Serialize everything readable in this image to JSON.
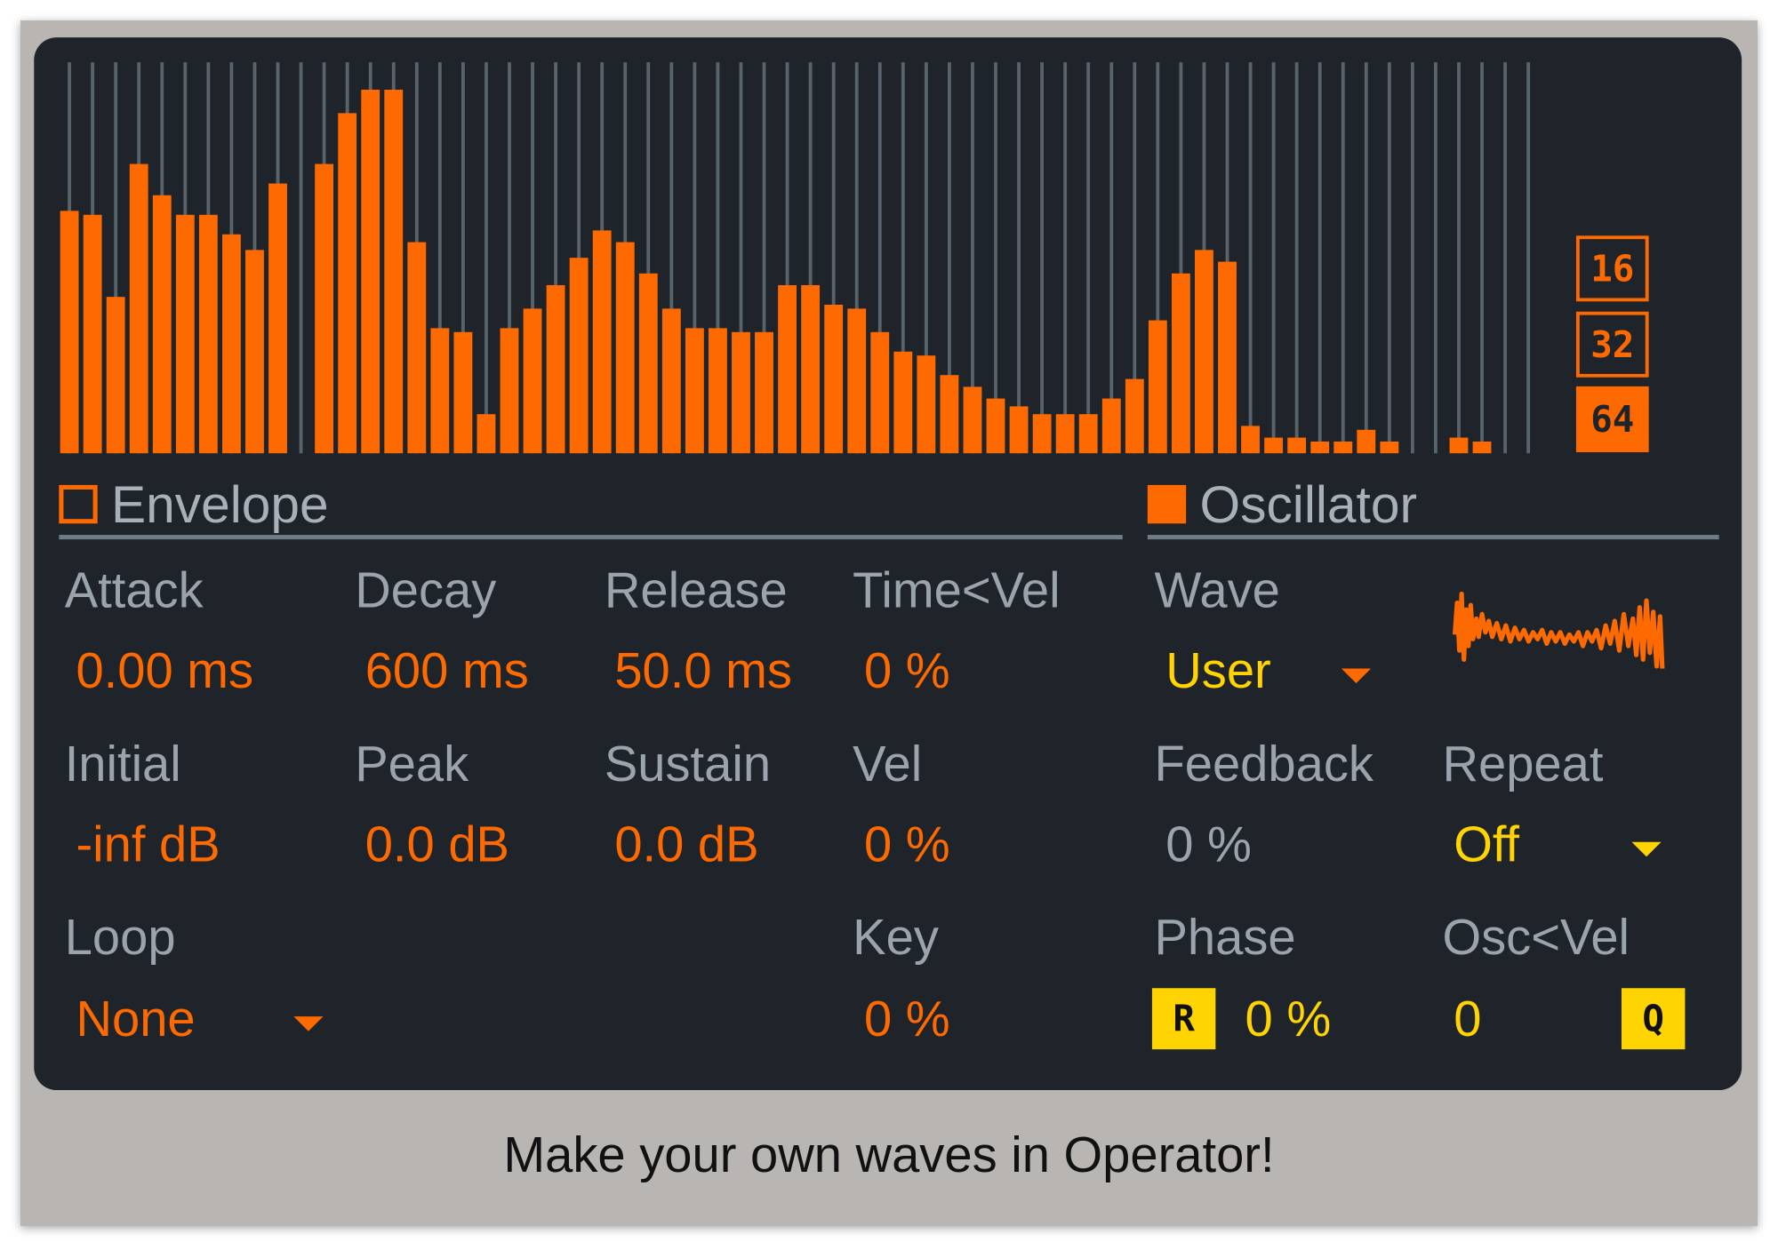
{
  "harmonics": {
    "values": [
      62,
      61,
      40,
      74,
      66,
      61,
      61,
      56,
      52,
      69,
      0,
      74,
      87,
      93,
      93,
      54,
      32,
      31,
      10,
      32,
      37,
      43,
      50,
      57,
      54,
      46,
      37,
      32,
      32,
      31,
      31,
      43,
      43,
      38,
      37,
      31,
      26,
      25,
      20,
      17,
      14,
      12,
      10,
      10,
      10,
      14,
      19,
      34,
      46,
      52,
      49,
      7,
      4,
      4,
      3,
      3,
      6,
      3,
      0,
      0,
      4,
      3,
      0,
      0
    ],
    "ylim": [
      0,
      100
    ],
    "resolutions": [
      "16",
      "32",
      "64"
    ]
  },
  "envelope": {
    "title": "Envelope",
    "params": [
      {
        "label": "Attack",
        "value": "0.00 ms"
      },
      {
        "label": "Decay",
        "value": "600 ms"
      },
      {
        "label": "Release",
        "value": "50.0 ms"
      },
      {
        "label": "Time<Vel",
        "value": "0 %"
      },
      {
        "label": "Initial",
        "value": "-inf dB"
      },
      {
        "label": "Peak",
        "value": "0.0 dB"
      },
      {
        "label": "Sustain",
        "value": "0.0 dB"
      },
      {
        "label": "Vel",
        "value": "0 %"
      },
      {
        "label": "Loop",
        "value": "None"
      },
      {
        "label": "Key",
        "value": "0 %"
      }
    ]
  },
  "oscillator": {
    "title": "Oscillator",
    "params": [
      {
        "label": "Wave",
        "value": "User"
      },
      {
        "label": "Feedback",
        "value": "0 %"
      },
      {
        "label": "Repeat",
        "value": "Off"
      },
      {
        "label": "Phase",
        "value": "0 %"
      },
      {
        "label": "Osc<Vel",
        "value": "0"
      }
    ],
    "buttons": [
      "R",
      "Q"
    ]
  },
  "caption": "Make your own waves in Operator!"
}
